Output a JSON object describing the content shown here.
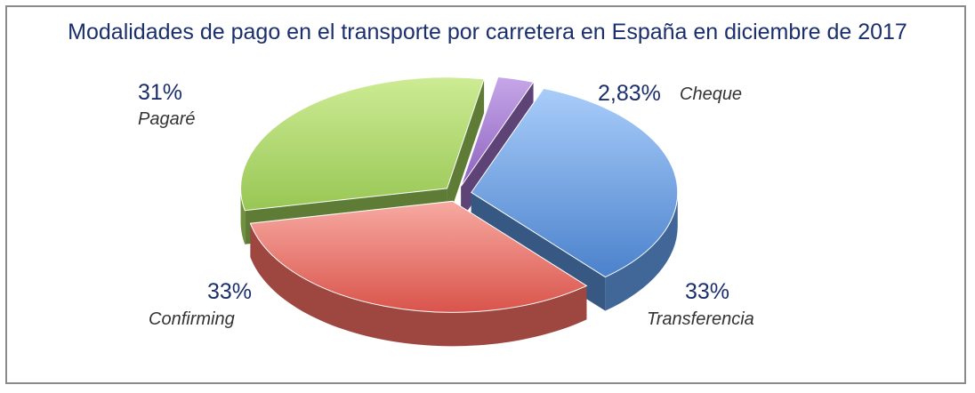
{
  "chart_data": {
    "type": "pie",
    "title": "Modalidades de pago en el transporte por carretera en España en diciembre de 2017",
    "slices": [
      {
        "label": "Cheque",
        "value": 2.83,
        "display": "2,83%",
        "color": "#9b6fc4"
      },
      {
        "label": "Transferencia",
        "value": 33,
        "display": "33%",
        "color": "#5b93d8"
      },
      {
        "label": "Confirming",
        "value": 33,
        "display": "33%",
        "color": "#e2655c"
      },
      {
        "label": "Pagaré",
        "value": 31,
        "display": "31%",
        "color": "#9fcf5a"
      }
    ]
  }
}
